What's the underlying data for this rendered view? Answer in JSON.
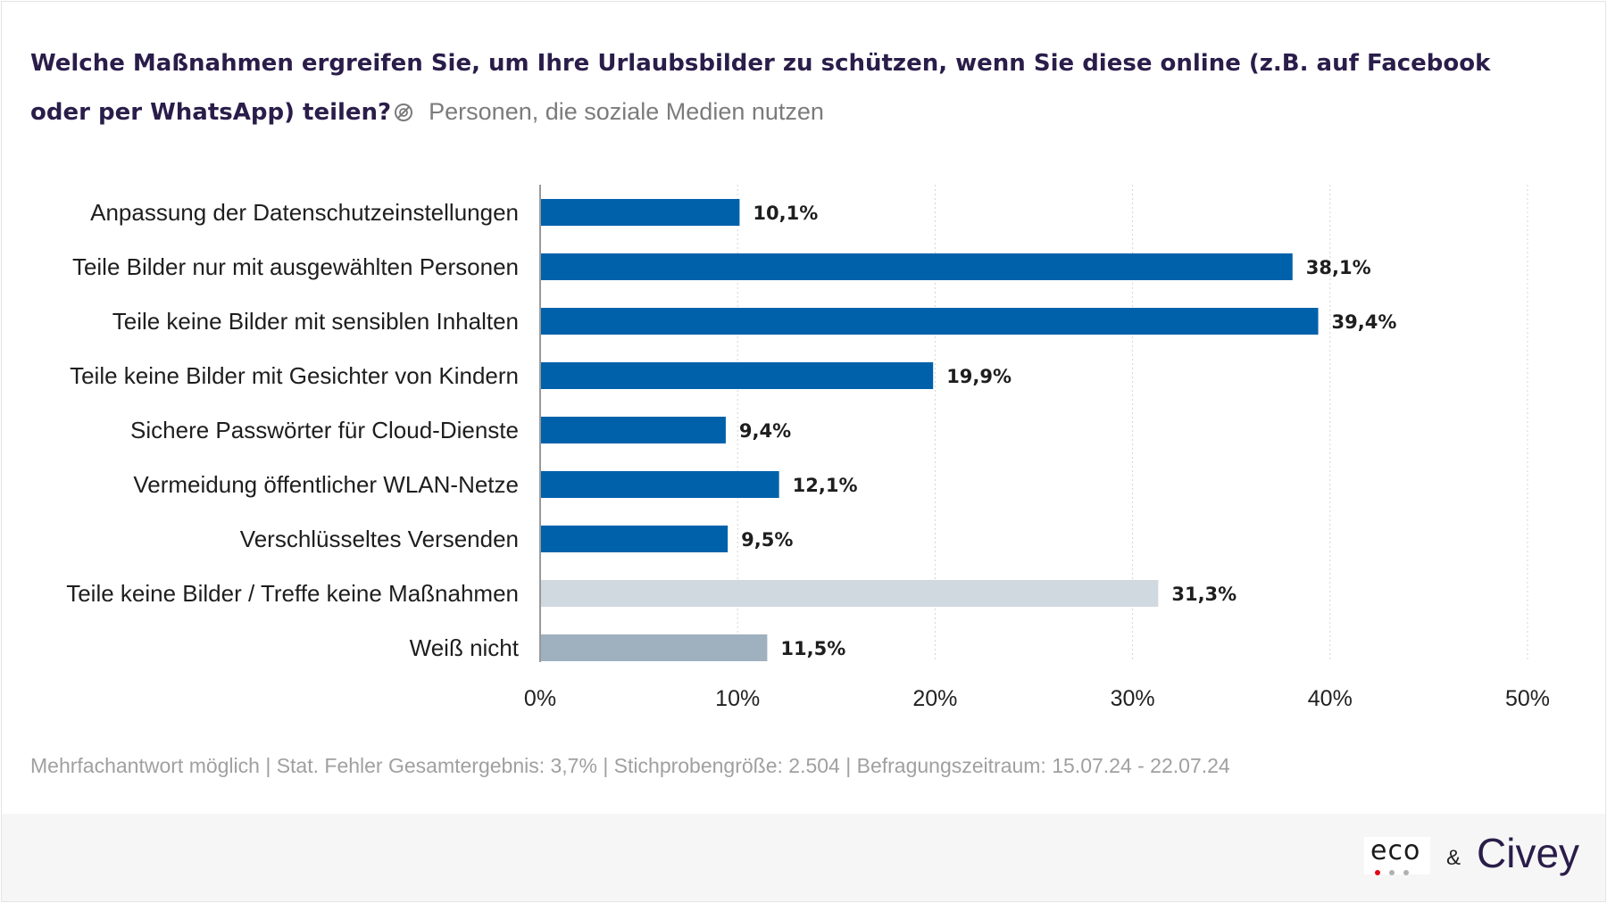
{
  "header": {
    "question": "Welche Maßnahmen ergreifen Sie, um Ihre Urlaubsbilder zu schützen, wenn Sie diese online (z.B. auf Facebook oder per WhatsApp) teilen?",
    "info_icon": "info-slash-icon",
    "population": "Personen, die soziale Medien nutzen"
  },
  "chart_data": {
    "type": "bar",
    "orientation": "horizontal",
    "categories": [
      "Anpassung der Datenschutzeinstellungen",
      "Teile Bilder nur mit ausgewählten Personen",
      "Teile keine Bilder mit sensiblen Inhalten",
      "Teile keine Bilder mit Gesichter von Kindern",
      "Sichere Passwörter für Cloud-Dienste",
      "Vermeidung öffentlicher WLAN-Netze",
      "Verschlüsseltes Versenden",
      "Teile keine Bilder / Treffe keine Maßnahmen",
      "Weiß nicht"
    ],
    "values": [
      10.1,
      38.1,
      39.4,
      19.9,
      9.4,
      12.1,
      9.5,
      31.3,
      11.5
    ],
    "data_labels": [
      "10,1%",
      "38,1%",
      "39,4%",
      "19,9%",
      "9,4%",
      "12,1%",
      "9,5%",
      "31,3%",
      "11,5%"
    ],
    "bar_colors": [
      "#0061ab",
      "#0061ab",
      "#0061ab",
      "#0061ab",
      "#0061ab",
      "#0061ab",
      "#0061ab",
      "#d0d8e0",
      "#9fb0bf"
    ],
    "xlim": [
      0,
      50
    ],
    "x_ticks": [
      0,
      10,
      20,
      30,
      40,
      50
    ],
    "x_tick_labels": [
      "0%",
      "10%",
      "20%",
      "30%",
      "40%",
      "50%"
    ],
    "grid": "vertical dotted"
  },
  "footnote": "Mehrfachantwort möglich | Stat. Fehler Gesamtergebnis: 3,7% | Stichprobengröße: 2.504 | Befragungszeitraum: 15.07.24 - 22.07.24",
  "branding": {
    "eco": "eco",
    "eco_dot_colors": [
      "#e30613",
      "#b0b0b0",
      "#b0b0b0"
    ],
    "ampersand": "&",
    "civey": "Civey"
  }
}
